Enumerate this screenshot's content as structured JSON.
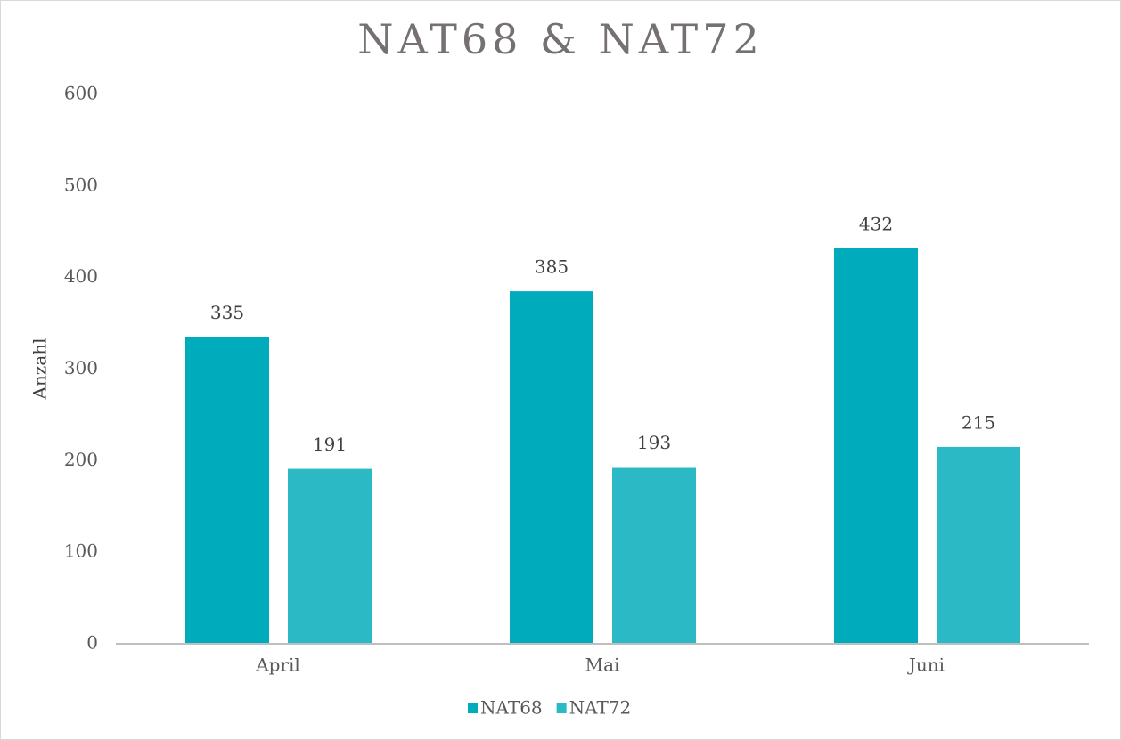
{
  "chart_data": {
    "type": "bar",
    "title": "NAT68 & NAT72",
    "y_label": "Anzahl",
    "categories": [
      "April",
      "Mai",
      "Juni"
    ],
    "series": [
      {
        "name": "NAT68",
        "color": "#00acbb",
        "values": [
          335,
          385,
          432
        ]
      },
      {
        "name": "NAT72",
        "color": "#2bb9c5",
        "values": [
          191,
          193,
          215
        ]
      }
    ],
    "ylim": [
      0,
      600
    ],
    "yticks": [
      0,
      100,
      200,
      300,
      400,
      500,
      600
    ],
    "grid": false,
    "legend": "bottom"
  }
}
